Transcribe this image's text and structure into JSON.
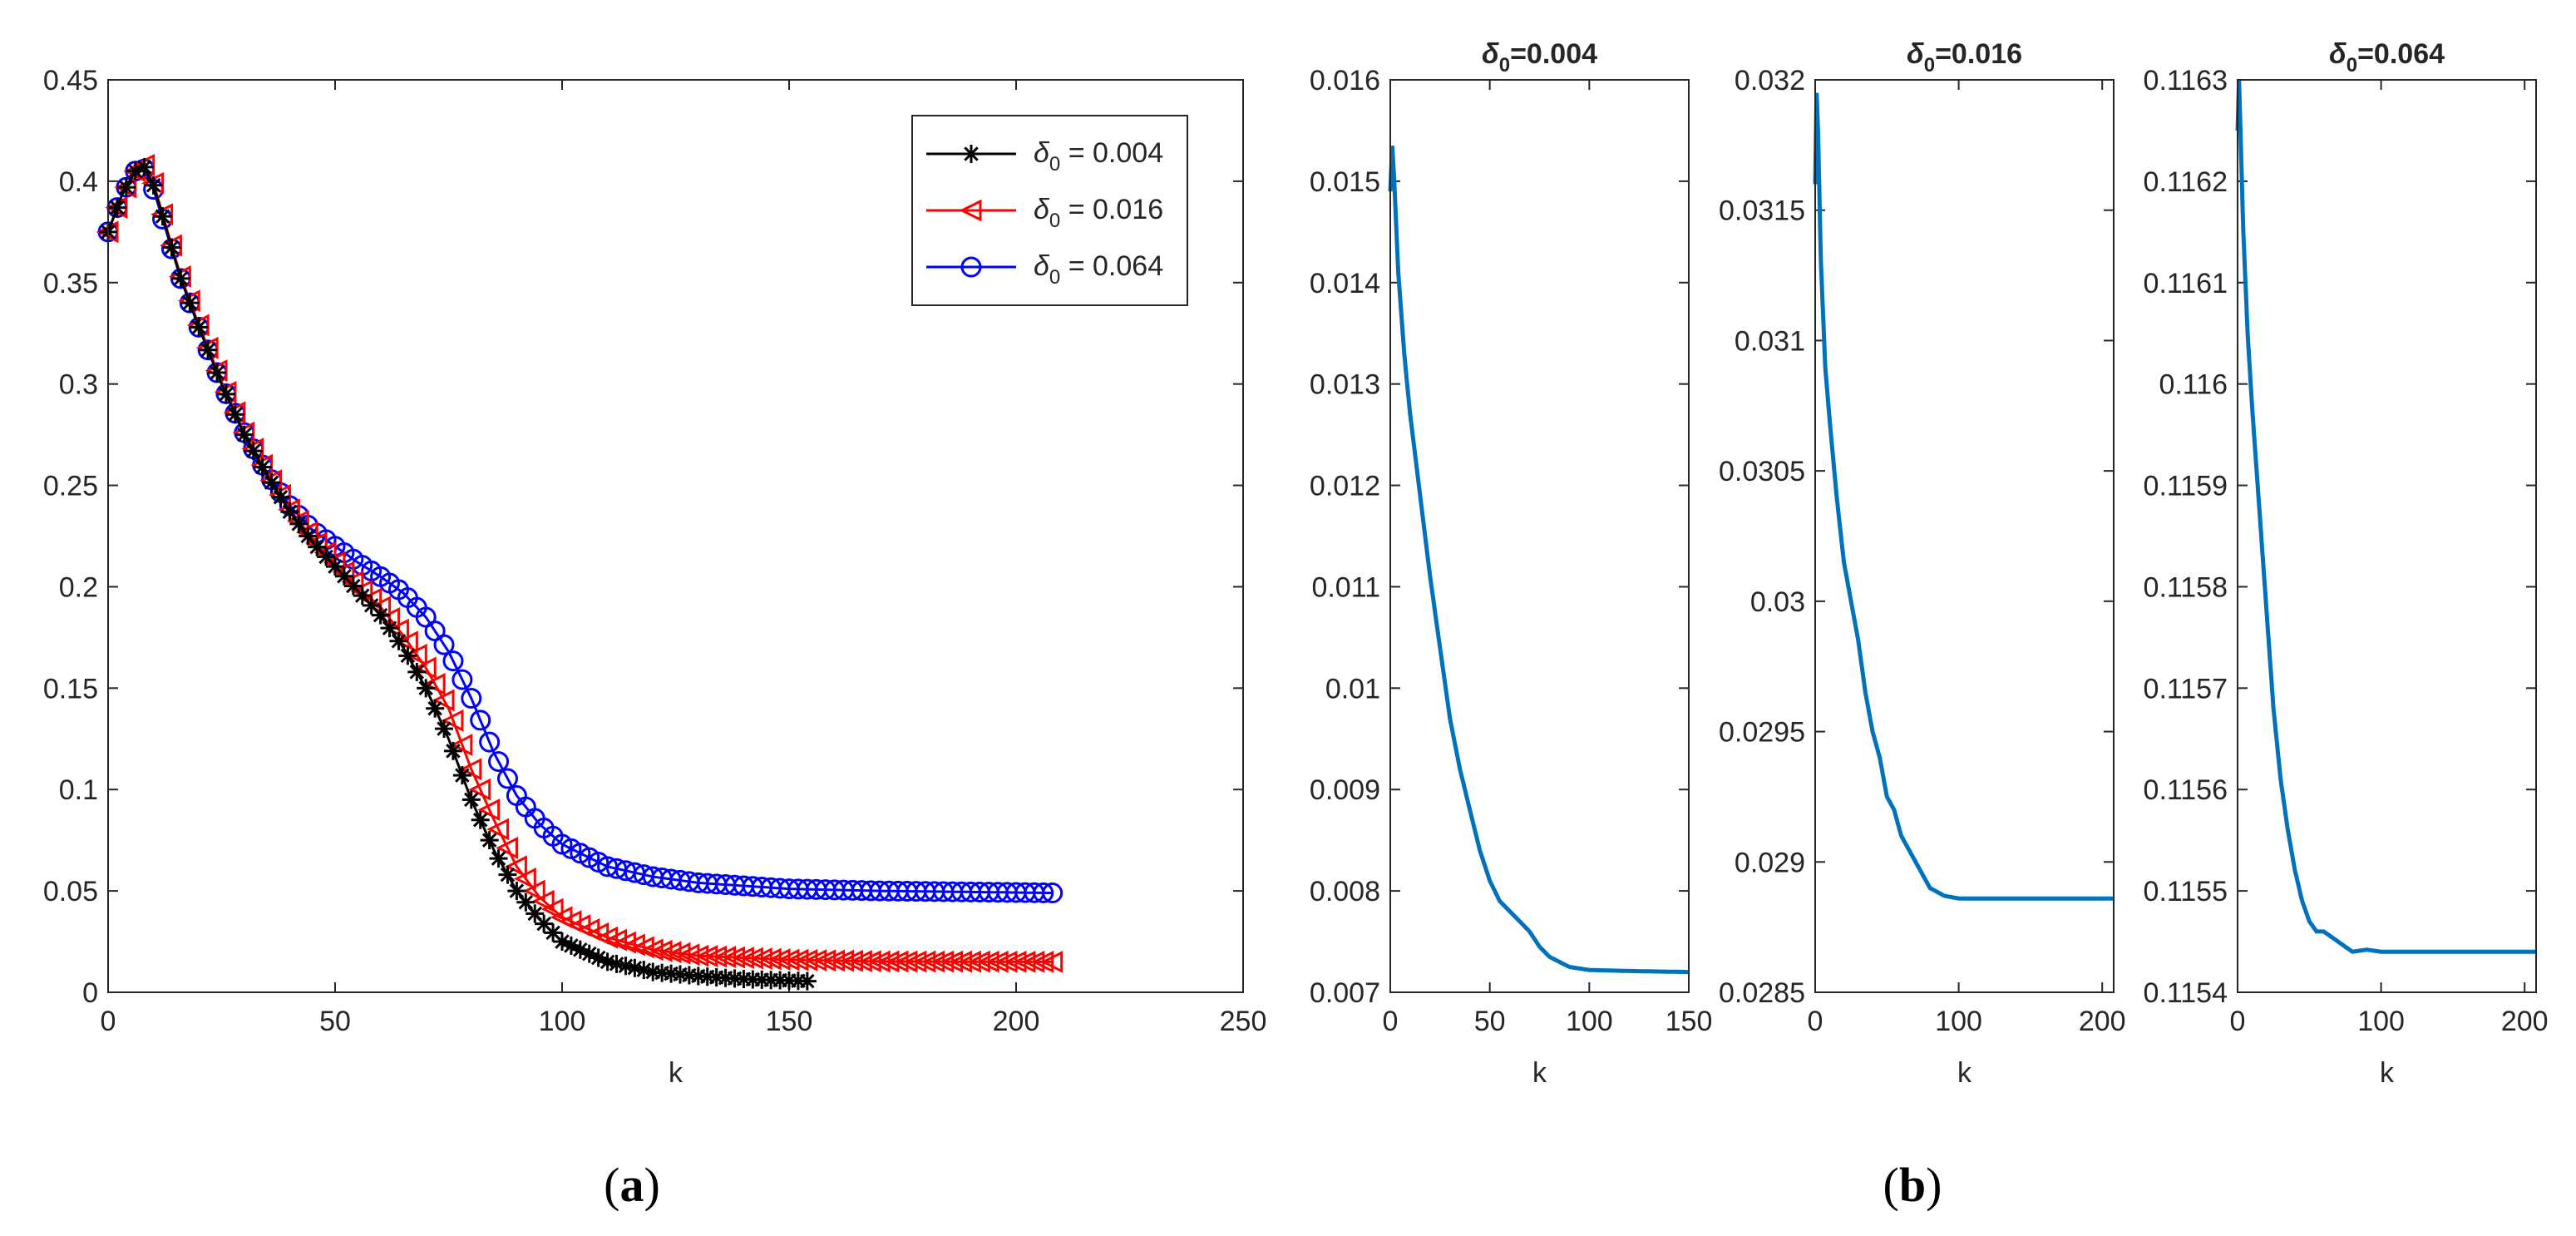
{
  "captions": {
    "a": {
      "label": "a"
    },
    "b": {
      "label": "b"
    }
  },
  "colors": {
    "black_series": "#000000",
    "red_series": "#ff0000",
    "blue_series": "#0000ff",
    "line": "#0072bd",
    "axis": "#262626"
  },
  "chart_data": [
    {
      "type": "line",
      "panel": "a",
      "title": "",
      "xlabel": "k",
      "ylabel": "",
      "xlim": [
        0,
        250
      ],
      "ylim": [
        0,
        0.45
      ],
      "xticks": [
        0,
        50,
        100,
        150,
        200,
        250
      ],
      "xtick_labels": [
        "0",
        "50",
        "100",
        "150",
        "200",
        "250"
      ],
      "yticks": [
        0,
        0.05,
        0.1,
        0.15,
        0.2,
        0.25,
        0.3,
        0.35,
        0.4,
        0.45
      ],
      "ytick_labels": [
        "0",
        "0.05",
        "0.1",
        "0.15",
        "0.2",
        "0.25",
        "0.3",
        "0.35",
        "0.4",
        "0.45"
      ],
      "legend_position": "top-right",
      "series": [
        {
          "name": "δ0 = 0.004",
          "legend_symbol": "δ",
          "legend_sub": "0",
          "legend_value": " = 0.004",
          "marker": "star",
          "color": "#000000",
          "x_max": 154,
          "points": [
            [
              0,
              0.375
            ],
            [
              3,
              0.393
            ],
            [
              6,
              0.405
            ],
            [
              8,
              0.407
            ],
            [
              10,
              0.398
            ],
            [
              13,
              0.375
            ],
            [
              16,
              0.352
            ],
            [
              20,
              0.328
            ],
            [
              25,
              0.3
            ],
            [
              30,
              0.275
            ],
            [
              35,
              0.255
            ],
            [
              40,
              0.237
            ],
            [
              45,
              0.222
            ],
            [
              50,
              0.21
            ],
            [
              55,
              0.198
            ],
            [
              60,
              0.186
            ],
            [
              65,
              0.17
            ],
            [
              70,
              0.15
            ],
            [
              75,
              0.125
            ],
            [
              80,
              0.095
            ],
            [
              85,
              0.07
            ],
            [
              90,
              0.05
            ],
            [
              95,
              0.036
            ],
            [
              100,
              0.025
            ],
            [
              110,
              0.015
            ],
            [
              120,
              0.01
            ],
            [
              130,
              0.008
            ],
            [
              140,
              0.0065
            ],
            [
              154,
              0.0055
            ]
          ]
        },
        {
          "name": "δ0 = 0.016",
          "legend_symbol": "δ",
          "legend_sub": "0",
          "legend_value": " = 0.016",
          "marker": "triangle-left",
          "color": "#ff0000",
          "x_max": 208,
          "points": [
            [
              0,
              0.375
            ],
            [
              3,
              0.393
            ],
            [
              6,
              0.405
            ],
            [
              8,
              0.408
            ],
            [
              10,
              0.399
            ],
            [
              13,
              0.376
            ],
            [
              16,
              0.353
            ],
            [
              20,
              0.329
            ],
            [
              25,
              0.301
            ],
            [
              30,
              0.276
            ],
            [
              35,
              0.256
            ],
            [
              40,
              0.238
            ],
            [
              45,
              0.224
            ],
            [
              50,
              0.212
            ],
            [
              55,
              0.2
            ],
            [
              60,
              0.19
            ],
            [
              65,
              0.176
            ],
            [
              70,
              0.16
            ],
            [
              75,
              0.14
            ],
            [
              80,
              0.11
            ],
            [
              85,
              0.085
            ],
            [
              90,
              0.062
            ],
            [
              95,
              0.047
            ],
            [
              100,
              0.037
            ],
            [
              110,
              0.027
            ],
            [
              120,
              0.021
            ],
            [
              130,
              0.018
            ],
            [
              150,
              0.016
            ],
            [
              170,
              0.0152
            ],
            [
              208,
              0.015
            ]
          ]
        },
        {
          "name": "δ0 = 0.064",
          "legend_symbol": "δ",
          "legend_sub": "0",
          "legend_value": " = 0.064",
          "marker": "circle",
          "color": "#0000ff",
          "x_max": 208,
          "points": [
            [
              0,
              0.375
            ],
            [
              3,
              0.393
            ],
            [
              6,
              0.405
            ],
            [
              8,
              0.406
            ],
            [
              10,
              0.396
            ],
            [
              13,
              0.374
            ],
            [
              16,
              0.352
            ],
            [
              20,
              0.328
            ],
            [
              25,
              0.3
            ],
            [
              30,
              0.276
            ],
            [
              35,
              0.256
            ],
            [
              40,
              0.24
            ],
            [
              45,
              0.228
            ],
            [
              50,
              0.22
            ],
            [
              55,
              0.212
            ],
            [
              60,
              0.205
            ],
            [
              65,
              0.197
            ],
            [
              70,
              0.185
            ],
            [
              75,
              0.168
            ],
            [
              80,
              0.145
            ],
            [
              85,
              0.118
            ],
            [
              90,
              0.097
            ],
            [
              95,
              0.083
            ],
            [
              100,
              0.073
            ],
            [
              110,
              0.062
            ],
            [
              120,
              0.057
            ],
            [
              130,
              0.054
            ],
            [
              150,
              0.051
            ],
            [
              170,
              0.05
            ],
            [
              208,
              0.049
            ]
          ]
        }
      ]
    },
    {
      "type": "line",
      "panel": "b1",
      "title_symbol": "δ",
      "title_sub": "0",
      "title_value": "=0.004",
      "xlabel": "k",
      "xlim": [
        0,
        150
      ],
      "ylim": [
        0.007,
        0.016
      ],
      "xticks": [
        0,
        50,
        100,
        150
      ],
      "xtick_labels": [
        "0",
        "50",
        "100",
        "150"
      ],
      "yticks": [
        0.007,
        0.008,
        0.009,
        0.01,
        0.011,
        0.012,
        0.013,
        0.014,
        0.015,
        0.016
      ],
      "ytick_labels": [
        "0.007",
        "0.008",
        "0.009",
        "0.01",
        "0.011",
        "0.012",
        "0.013",
        "0.014",
        "0.015",
        "0.016"
      ],
      "series": [
        {
          "name": "δ0=0.004",
          "color": "#0072bd",
          "points": [
            [
              0,
              0.0149
            ],
            [
              1,
              0.01535
            ],
            [
              2,
              0.015
            ],
            [
              4,
              0.0141
            ],
            [
              7,
              0.0133
            ],
            [
              10,
              0.0127
            ],
            [
              15,
              0.0119
            ],
            [
              20,
              0.0111
            ],
            [
              25,
              0.0104
            ],
            [
              30,
              0.0097
            ],
            [
              35,
              0.0092
            ],
            [
              40,
              0.0088
            ],
            [
              45,
              0.0084
            ],
            [
              50,
              0.0081
            ],
            [
              55,
              0.0079
            ],
            [
              60,
              0.0078
            ],
            [
              70,
              0.0076
            ],
            [
              75,
              0.00745
            ],
            [
              80,
              0.00735
            ],
            [
              90,
              0.00725
            ],
            [
              100,
              0.00722
            ],
            [
              120,
              0.00721
            ],
            [
              150,
              0.0072
            ]
          ]
        }
      ]
    },
    {
      "type": "line",
      "panel": "b2",
      "title_symbol": "δ",
      "title_sub": "0",
      "title_value": "=0.016",
      "xlabel": "k",
      "xlim": [
        0,
        208
      ],
      "ylim": [
        0.0285,
        0.032
      ],
      "xticks": [
        0,
        100,
        200
      ],
      "xtick_labels": [
        "0",
        "100",
        "200"
      ],
      "yticks": [
        0.0285,
        0.029,
        0.0295,
        0.03,
        0.0305,
        0.031,
        0.0315,
        0.032
      ],
      "ytick_labels": [
        "0.0285",
        "0.029",
        "0.0295",
        "0.03",
        "0.0305",
        "0.031",
        "0.0315",
        "0.032"
      ],
      "series": [
        {
          "name": "δ0=0.016",
          "color": "#0072bd",
          "points": [
            [
              0,
              0.0316
            ],
            [
              1,
              0.03195
            ],
            [
              2,
              0.0318
            ],
            [
              4,
              0.0313
            ],
            [
              7,
              0.0309
            ],
            [
              10,
              0.0307
            ],
            [
              15,
              0.0304
            ],
            [
              20,
              0.03015
            ],
            [
              25,
              0.03
            ],
            [
              30,
              0.02985
            ],
            [
              35,
              0.02965
            ],
            [
              40,
              0.0295
            ],
            [
              45,
              0.0294
            ],
            [
              50,
              0.02925
            ],
            [
              55,
              0.0292
            ],
            [
              60,
              0.0291
            ],
            [
              70,
              0.029
            ],
            [
              75,
              0.02895
            ],
            [
              80,
              0.0289
            ],
            [
              90,
              0.02887
            ],
            [
              100,
              0.02886
            ],
            [
              150,
              0.02886
            ],
            [
              208,
              0.02886
            ]
          ]
        }
      ]
    },
    {
      "type": "line",
      "panel": "b3",
      "title_symbol": "δ",
      "title_sub": "0",
      "title_value": "=0.064",
      "xlabel": "k",
      "xlim": [
        0,
        208
      ],
      "ylim": [
        0.1154,
        0.1163
      ],
      "xticks": [
        0,
        100,
        200
      ],
      "xtick_labels": [
        "0",
        "100",
        "200"
      ],
      "yticks": [
        0.1154,
        0.1155,
        0.1156,
        0.1157,
        0.1158,
        0.1159,
        0.116,
        0.1161,
        0.1162,
        0.1163
      ],
      "ytick_labels": [
        "0.1154",
        "0.1155",
        "0.1156",
        "0.1157",
        "0.1158",
        "0.1159",
        "0.116",
        "0.1161",
        "0.1162",
        "0.1163"
      ],
      "series": [
        {
          "name": "δ0=0.064",
          "color": "#0072bd",
          "points": [
            [
              0,
              0.11625
            ],
            [
              1,
              0.1163
            ],
            [
              2,
              0.11625
            ],
            [
              4,
              0.11615
            ],
            [
              7,
              0.11605
            ],
            [
              10,
              0.11598
            ],
            [
              15,
              0.11588
            ],
            [
              20,
              0.11578
            ],
            [
              25,
              0.11568
            ],
            [
              30,
              0.11561
            ],
            [
              35,
              0.11556
            ],
            [
              40,
              0.11552
            ],
            [
              45,
              0.11549
            ],
            [
              50,
              0.11547
            ],
            [
              55,
              0.11546
            ],
            [
              60,
              0.11546
            ],
            [
              70,
              0.11545
            ],
            [
              80,
              0.11544
            ],
            [
              90,
              0.115442
            ],
            [
              100,
              0.11544
            ],
            [
              150,
              0.11544
            ],
            [
              208,
              0.11544
            ]
          ]
        }
      ]
    }
  ]
}
